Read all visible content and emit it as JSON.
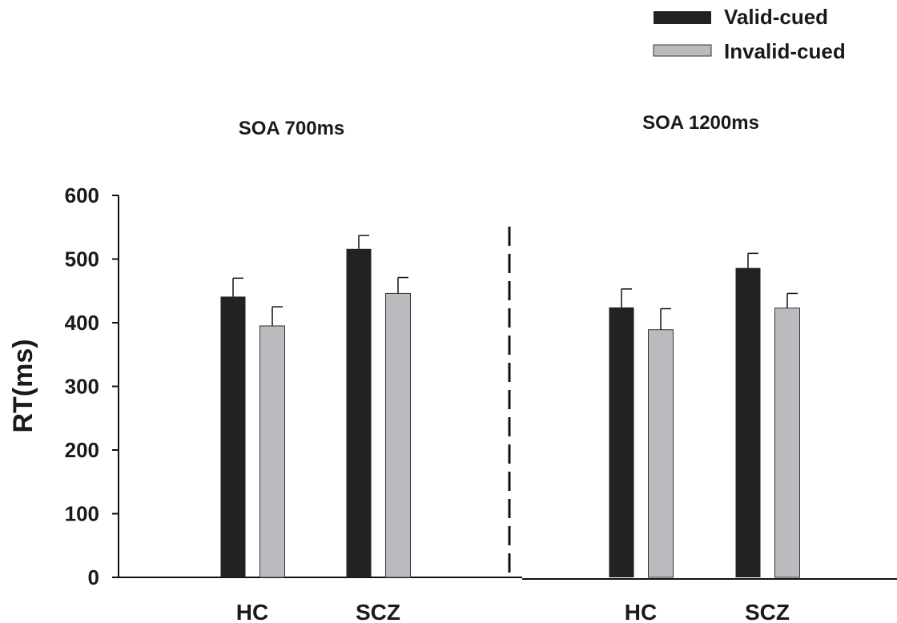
{
  "chart_data": {
    "type": "bar",
    "ylabel": "RT(ms)",
    "ylim": [
      0,
      600
    ],
    "yticks": [
      0,
      100,
      200,
      300,
      400,
      500,
      600
    ],
    "grid": false,
    "legend_position": "top-right",
    "panels": [
      {
        "title": "SOA 700ms",
        "categories": [
          "HC",
          "SCZ"
        ],
        "series": [
          {
            "name": "Valid-cued",
            "values": [
              441,
              516
            ],
            "errors": [
              29,
              21
            ]
          },
          {
            "name": "Invalid-cued",
            "values": [
              395,
              446
            ],
            "errors": [
              30,
              25
            ]
          }
        ]
      },
      {
        "title": "SOA 1200ms",
        "categories": [
          "HC",
          "SCZ"
        ],
        "series": [
          {
            "name": "Valid-cued",
            "values": [
              424,
              486
            ],
            "errors": [
              29,
              23
            ]
          },
          {
            "name": "Invalid-cued",
            "values": [
              389,
              423
            ],
            "errors": [
              33,
              23
            ]
          }
        ]
      }
    ],
    "colors": {
      "Valid-cued": "#222222",
      "Invalid-cued": "#b9bbbe"
    }
  }
}
